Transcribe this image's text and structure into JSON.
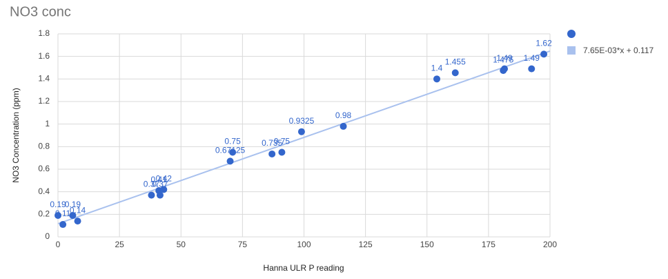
{
  "chart_data": {
    "type": "scatter",
    "title": "NO3 conc",
    "x_label": "Hanna ULR  P reading",
    "y_label": "NO3 Concentration (ppm)",
    "series": [
      {
        "color": "#3366cc",
        "x": [
          0,
          2,
          6,
          8,
          38,
          41,
          41.5,
          43,
          70,
          71,
          87,
          91,
          99,
          116,
          154,
          161.5,
          181,
          181.5,
          192.5,
          197.5
        ],
        "values": [
          0.19,
          0.11,
          0.19,
          0.14,
          0.37,
          0.41,
          0.37,
          0.42,
          0.67125,
          0.75,
          0.735,
          0.75,
          0.9325,
          0.98,
          1.4,
          1.455,
          1.475,
          1.49,
          1.49,
          1.62
        ]
      }
    ],
    "trendline": {
      "label": "7.65E-03*x + 0.117",
      "slope": 0.00765,
      "intercept": 0.117,
      "color": "#a9c1ee"
    },
    "xlim": [
      0,
      200
    ],
    "xticks": [
      0,
      25,
      50,
      75,
      100,
      125,
      150,
      175,
      200
    ],
    "ylim": [
      0,
      1.8
    ],
    "yticks": [
      0,
      0.2,
      0.4,
      0.6,
      0.8,
      1,
      1.2,
      1.4,
      1.6,
      1.8
    ],
    "grid": true,
    "legend": "right"
  }
}
